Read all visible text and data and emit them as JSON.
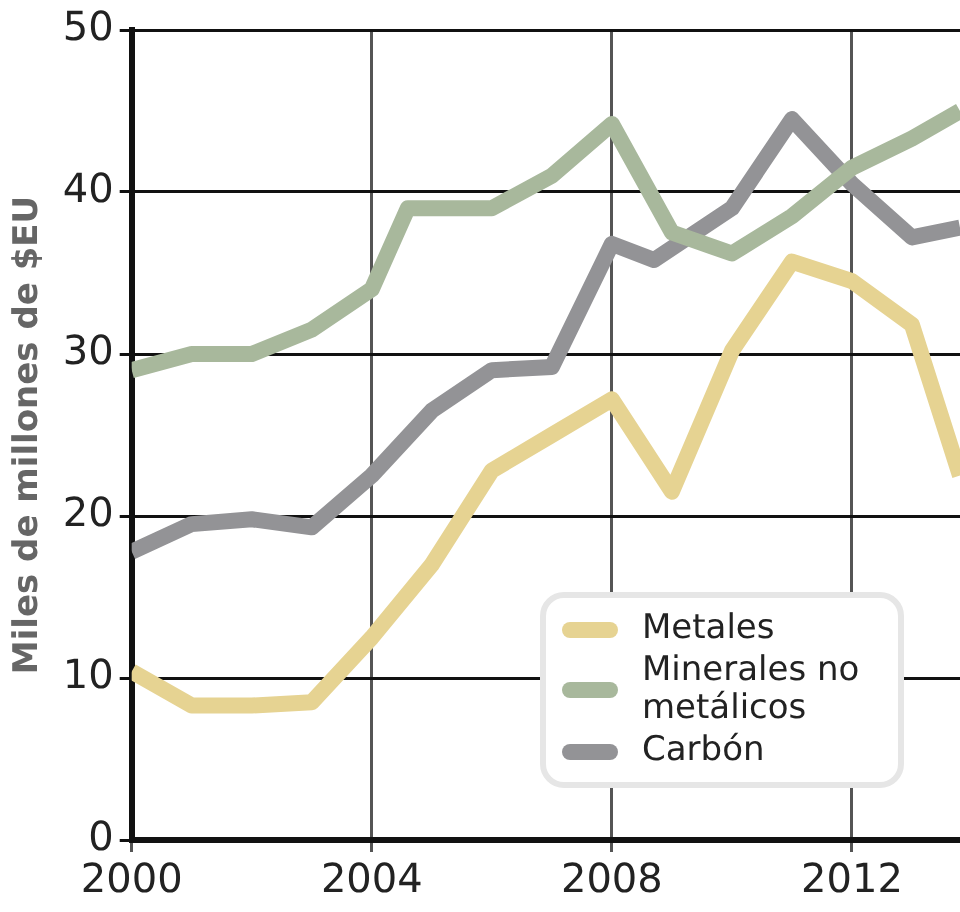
{
  "chart_data": {
    "type": "line",
    "ylabel": "Miles de millones de $EU",
    "xlim": [
      2000,
      2013.8
    ],
    "xticks": [
      2000,
      2004,
      2008,
      2012
    ],
    "ylim": [
      0,
      50
    ],
    "yticks": [
      0,
      10,
      20,
      30,
      40,
      50
    ],
    "grid": true,
    "legend": "bottom right",
    "marker": "none",
    "line_style": "solid",
    "series": [
      {
        "name": "Metales",
        "color": "#e6d392",
        "x": [
          2000,
          2001,
          2002,
          2003,
          2004,
          2005,
          2006,
          2007,
          2008,
          2009,
          2010,
          2011,
          2012,
          2013,
          2013.8
        ],
        "values": [
          10.4,
          8.3,
          8.3,
          8.5,
          12.5,
          17,
          22.8,
          25,
          27.2,
          21.5,
          30.2,
          35.7,
          34.5,
          31.8,
          22.5
        ]
      },
      {
        "name": "Minerales no metálicos",
        "color": "#a8b89c",
        "x": [
          2000,
          2001,
          2002,
          2003,
          2004,
          2004.6,
          2006,
          2007,
          2008,
          2009,
          2010,
          2011,
          2012,
          2013,
          2013.8
        ],
        "values": [
          29,
          30,
          30,
          31.5,
          34,
          39,
          39,
          41,
          44.2,
          37.5,
          36.2,
          38.5,
          41.5,
          43.3,
          45
        ]
      },
      {
        "name": "Carbón",
        "color": "#939396",
        "x": [
          2000,
          2001,
          2002,
          2003,
          2004,
          2005,
          2006,
          2007,
          2008,
          2008.7,
          2010,
          2011,
          2012,
          2013,
          2013.8
        ],
        "values": [
          17.8,
          19.5,
          19.8,
          19.3,
          22.5,
          26.5,
          29,
          29.2,
          36.8,
          35.8,
          39,
          44.5,
          40.5,
          37.2,
          37.8
        ]
      }
    ]
  }
}
